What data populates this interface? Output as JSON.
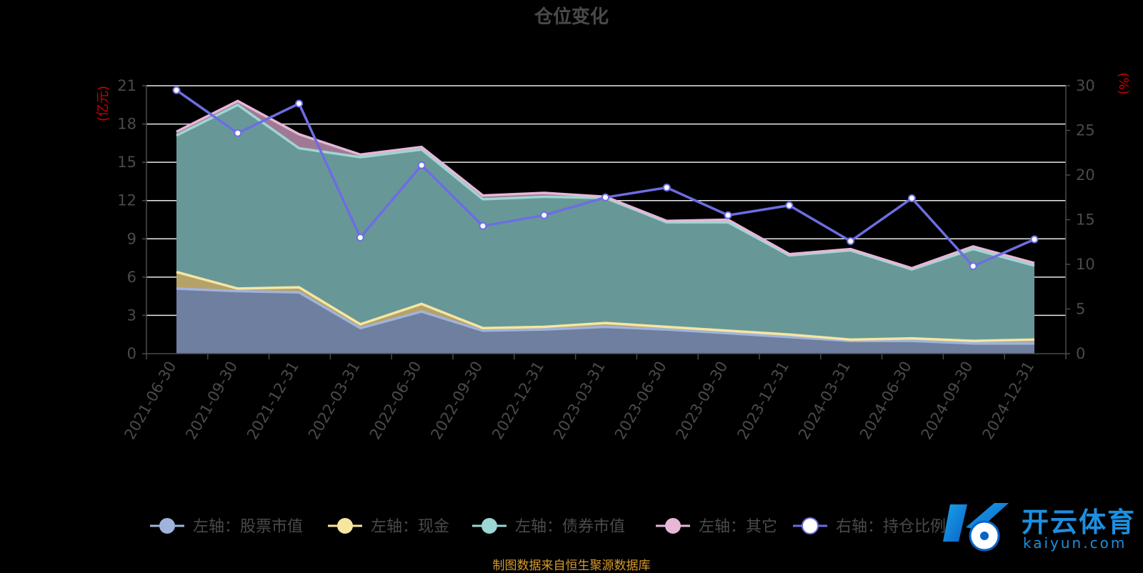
{
  "chart_data": {
    "type": "area",
    "title": "仓位变化",
    "y_left_unit": "(亿元)",
    "y_right_unit": "(%)",
    "x": [
      "2021-06-30",
      "2021-09-30",
      "2021-12-31",
      "2022-03-31",
      "2022-06-30",
      "2022-09-30",
      "2022-12-31",
      "2023-03-31",
      "2023-06-30",
      "2023-09-30",
      "2023-12-31",
      "2024-03-31",
      "2024-06-30",
      "2024-09-30",
      "2024-12-31"
    ],
    "y_left_ticks": [
      "0",
      "3",
      "6",
      "9",
      "12",
      "15",
      "18",
      "21"
    ],
    "y_right_ticks": [
      "0",
      "5",
      "10",
      "15",
      "20",
      "25",
      "30"
    ],
    "ylim_left": [
      0,
      21
    ],
    "ylim_right": [
      0,
      30
    ],
    "stacked": true,
    "grid": true,
    "series": [
      {
        "name": "左轴：股票市值",
        "axis": "left",
        "color": "#9fb3dc",
        "fill": "#6f7f9f",
        "values": [
          5.1,
          4.9,
          4.8,
          2.0,
          3.3,
          1.8,
          1.9,
          2.1,
          1.9,
          1.6,
          1.3,
          1.0,
          1.0,
          0.8,
          0.8
        ]
      },
      {
        "name": "左轴：现金",
        "axis": "left",
        "color": "#f6e6a0",
        "fill": "#b5a26a",
        "values": [
          1.3,
          0.2,
          0.4,
          0.3,
          0.6,
          0.2,
          0.2,
          0.3,
          0.2,
          0.2,
          0.2,
          0.1,
          0.2,
          0.2,
          0.3
        ]
      },
      {
        "name": "左轴：债券市值",
        "axis": "left",
        "color": "#9ed6d3",
        "fill": "#679897",
        "values": [
          10.7,
          14.4,
          10.9,
          13.1,
          12.1,
          10.1,
          10.2,
          9.8,
          8.2,
          8.5,
          6.2,
          7.0,
          5.4,
          7.2,
          5.8
        ]
      },
      {
        "name": "左轴：其它",
        "axis": "left",
        "color": "#e6b7d6",
        "fill": "#a07a94",
        "values": [
          0.3,
          0.3,
          1.1,
          0.2,
          0.2,
          0.3,
          0.3,
          0.1,
          0.1,
          0.2,
          0.1,
          0.1,
          0.1,
          0.2,
          0.2
        ]
      },
      {
        "name": "右轴：持仓比例",
        "axis": "right",
        "color": "#6d6de3",
        "type": "line",
        "values": [
          29.5,
          24.7,
          28.0,
          13.0,
          21.1,
          14.3,
          15.5,
          17.5,
          18.6,
          15.5,
          16.6,
          12.6,
          17.4,
          9.8,
          12.8
        ]
      }
    ],
    "legend": "bottom"
  },
  "source": "制图数据来自恒生聚源数据库",
  "watermark": {
    "brand": "开云体育",
    "domain": "kaiyun.com"
  }
}
